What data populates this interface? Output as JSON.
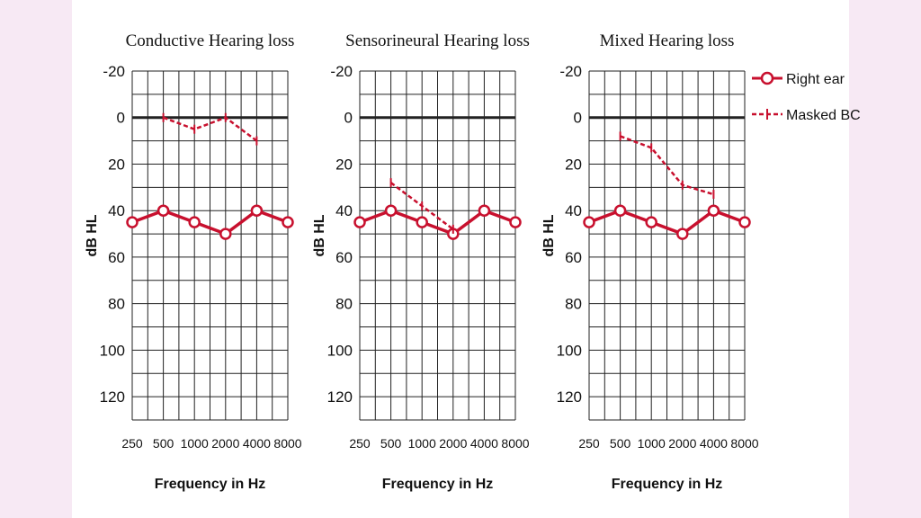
{
  "background_color": "#f7e9f4",
  "panel_color": "#ffffff",
  "series_color": "#c8102e",
  "legend": {
    "right_ear": "Right ear",
    "masked_bc": "Masked BC"
  },
  "chart_data": [
    {
      "type": "line",
      "title": "Conductive Hearing loss",
      "xlabel": "Frequency in Hz",
      "ylabel": "dB HL",
      "x": [
        "250",
        "500",
        "1000",
        "2000",
        "4000",
        "8000"
      ],
      "yticks": [
        "-20",
        "0",
        "20",
        "40",
        "60",
        "80",
        "100",
        "120"
      ],
      "ylim": [
        -20,
        130
      ],
      "y_inverted": true,
      "grid": true,
      "series": [
        {
          "name": "Right ear",
          "style": "solid-circles",
          "x": [
            "250",
            "500",
            "1000",
            "2000",
            "4000",
            "8000"
          ],
          "values": [
            45,
            40,
            45,
            50,
            40,
            45
          ]
        },
        {
          "name": "Masked BC",
          "style": "dashed",
          "x": [
            "500",
            "1000",
            "2000",
            "4000"
          ],
          "values": [
            0,
            5,
            0,
            10
          ]
        }
      ]
    },
    {
      "type": "line",
      "title": "Sensorineural Hearing loss",
      "xlabel": "Frequency in Hz",
      "ylabel": "dB HL",
      "x": [
        "250",
        "500",
        "1000",
        "2000",
        "4000",
        "8000"
      ],
      "yticks": [
        "-20",
        "0",
        "20",
        "40",
        "60",
        "80",
        "100",
        "120"
      ],
      "ylim": [
        -20,
        130
      ],
      "y_inverted": true,
      "grid": true,
      "series": [
        {
          "name": "Right ear",
          "style": "solid-circles",
          "x": [
            "250",
            "500",
            "1000",
            "2000",
            "4000",
            "8000"
          ],
          "values": [
            45,
            40,
            45,
            50,
            40,
            45
          ]
        },
        {
          "name": "Masked BC",
          "style": "dashed",
          "x": [
            "500",
            "1000",
            "2000"
          ],
          "values": [
            28,
            38,
            48
          ]
        }
      ]
    },
    {
      "type": "line",
      "title": "Mixed Hearing loss",
      "xlabel": "Frequency in Hz",
      "ylabel": "dB HL",
      "x": [
        "250",
        "500",
        "1000",
        "2000",
        "4000",
        "8000"
      ],
      "yticks": [
        "-20",
        "0",
        "20",
        "40",
        "60",
        "80",
        "100",
        "120"
      ],
      "ylim": [
        -20,
        130
      ],
      "y_inverted": true,
      "grid": true,
      "series": [
        {
          "name": "Right ear",
          "style": "solid-circles",
          "x": [
            "250",
            "500",
            "1000",
            "2000",
            "4000",
            "8000"
          ],
          "values": [
            45,
            40,
            45,
            50,
            40,
            45
          ]
        },
        {
          "name": "Masked BC",
          "style": "dashed",
          "x": [
            "500",
            "1000",
            "2000",
            "4000"
          ],
          "values": [
            8,
            13,
            29,
            33
          ]
        }
      ]
    }
  ]
}
